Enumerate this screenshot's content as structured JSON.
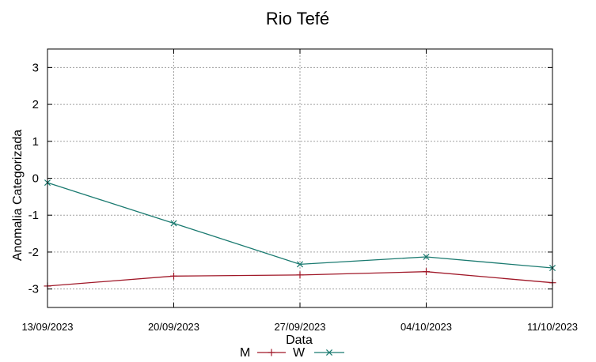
{
  "chart_data": {
    "type": "line",
    "title": "Rio Tefé",
    "xlabel": "Data",
    "ylabel": "Anomalia Categorizada",
    "x": [
      "13/09/2023",
      "20/09/2023",
      "27/09/2023",
      "04/10/2023",
      "11/10/2023"
    ],
    "ylim": [
      -3.5,
      3.5
    ],
    "yticks": [
      -3,
      -2,
      -1,
      0,
      1,
      2,
      3
    ],
    "grid": true,
    "legend_position": "bottom",
    "series": [
      {
        "name": "M",
        "color": "#a01828",
        "marker": "plus",
        "values": [
          -2.92,
          -2.65,
          -2.62,
          -2.53,
          -2.83
        ]
      },
      {
        "name": "W",
        "color": "#1a7a70",
        "marker": "cross",
        "values": [
          -0.12,
          -1.22,
          -2.33,
          -2.13,
          -2.43
        ]
      }
    ]
  }
}
